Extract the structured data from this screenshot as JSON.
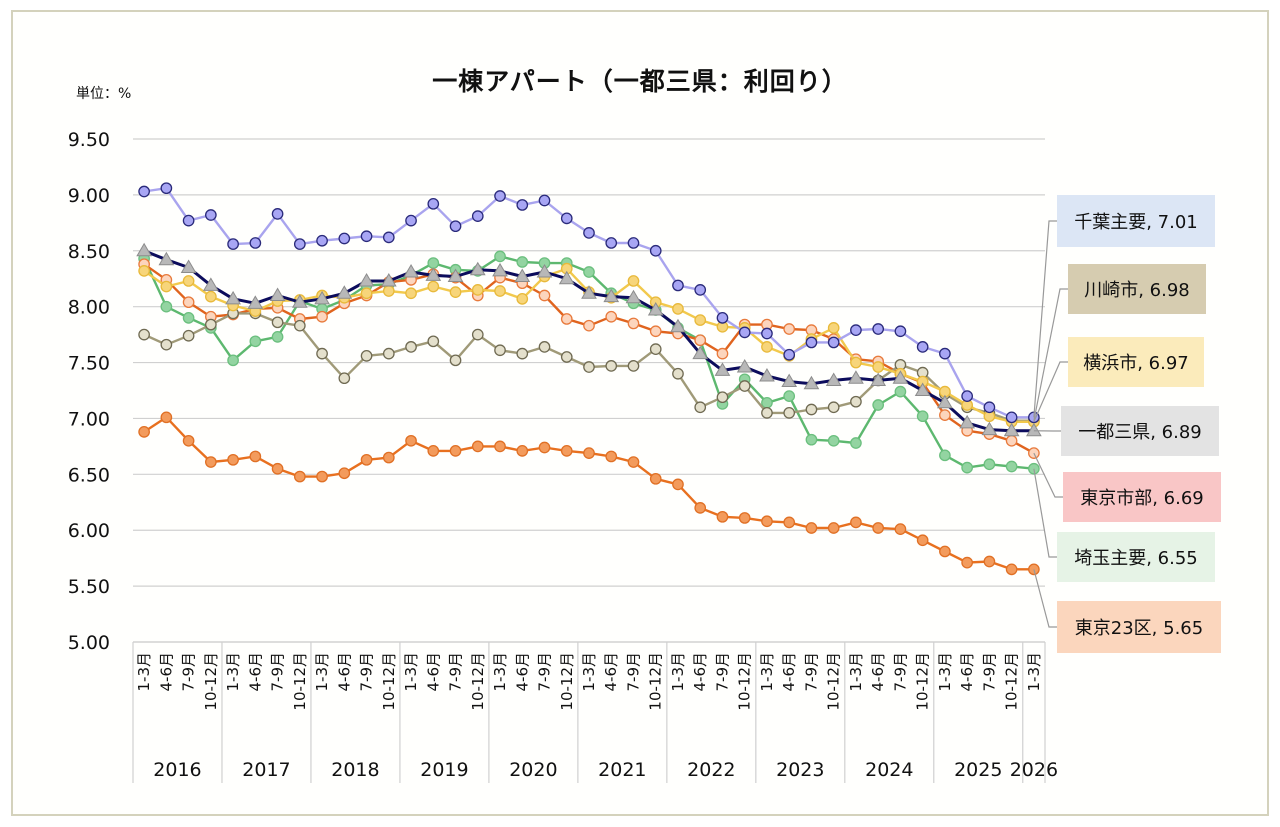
{
  "chart_data": {
    "type": "line",
    "title": "一棟アパート（一都三県：利回り）",
    "unit_label": "単位：%",
    "xlabel": "",
    "ylabel": "",
    "ylim": [
      5.0,
      9.5
    ],
    "yticks": [
      "9.50",
      "9.00",
      "8.50",
      "8.00",
      "7.50",
      "7.00",
      "6.50",
      "6.00",
      "5.50",
      "5.00"
    ],
    "grid": true,
    "legend": "right (data labels at series end)",
    "years": [
      {
        "label": "2016",
        "quarters": 4
      },
      {
        "label": "2017",
        "quarters": 4
      },
      {
        "label": "2018",
        "quarters": 4
      },
      {
        "label": "2019",
        "quarters": 4
      },
      {
        "label": "2020",
        "quarters": 4
      },
      {
        "label": "2021",
        "quarters": 4
      },
      {
        "label": "2022",
        "quarters": 4
      },
      {
        "label": "2023",
        "quarters": 4
      },
      {
        "label": "2024",
        "quarters": 4
      },
      {
        "label": "2025",
        "quarters": 4
      },
      {
        "label": "2026",
        "quarters": 1
      }
    ],
    "categories": [
      "1-3月",
      "4-6月",
      "7-9月",
      "10-12月",
      "1-3月",
      "4-6月",
      "7-9月",
      "10-12月",
      "1-3月",
      "4-6月",
      "7-9月",
      "10-12月",
      "1-3月",
      "4-6月",
      "7-9月",
      "10-12月",
      "1-3月",
      "4-6月",
      "7-9月",
      "10-12月",
      "1-3月",
      "4-6月",
      "7-9月",
      "10-12月",
      "1-3月",
      "4-6月",
      "7-9月",
      "10-12月",
      "1-3月",
      "4-6月",
      "7-9月",
      "10-12月",
      "1-3月",
      "4-6月",
      "7-9月",
      "10-12月",
      "1-3月",
      "4-6月",
      "7-9月",
      "10-12月",
      "1-3月"
    ],
    "series": [
      {
        "name": "千葉主要",
        "end_label": "千葉主要, 7.01",
        "color": "#a9a4ee",
        "marker": "circle",
        "marker_fill": "#a8a6f4",
        "marker_stroke": "#2a2a7a",
        "label_bg": "#dce6f5",
        "values": [
          9.03,
          9.06,
          8.77,
          8.82,
          8.56,
          8.57,
          8.83,
          8.56,
          8.59,
          8.61,
          8.63,
          8.62,
          8.77,
          8.92,
          8.72,
          8.81,
          8.99,
          8.91,
          8.95,
          8.79,
          8.66,
          8.57,
          8.57,
          8.5,
          8.19,
          8.15,
          7.9,
          7.77,
          7.76,
          7.57,
          7.68,
          7.68,
          7.79,
          7.8,
          7.78,
          7.64,
          7.58,
          7.2,
          7.1,
          7.01,
          7.01
        ]
      },
      {
        "name": "川崎市",
        "end_label": "川崎市, 6.98",
        "color": "#a09a78",
        "marker": "circle",
        "marker_fill": "#e4e0cc",
        "marker_stroke": "#6f6a52",
        "label_bg": "#d6ccb0",
        "values": [
          7.75,
          7.66,
          7.74,
          7.84,
          7.94,
          7.94,
          7.86,
          7.83,
          7.58,
          7.36,
          7.56,
          7.58,
          7.64,
          7.69,
          7.52,
          7.75,
          7.61,
          7.58,
          7.64,
          7.55,
          7.46,
          7.47,
          7.47,
          7.62,
          7.4,
          7.1,
          7.19,
          7.29,
          7.05,
          7.05,
          7.08,
          7.1,
          7.15,
          7.34,
          7.48,
          7.41,
          7.22,
          7.1,
          7.05,
          6.98,
          6.98
        ]
      },
      {
        "name": "横浜市",
        "end_label": "横浜市, 6.97",
        "color": "#f2c94c",
        "marker": "circle",
        "marker_fill": "#f7d57a",
        "marker_stroke": "#e8b93a",
        "label_bg": "#fbebbb",
        "values": [
          8.32,
          8.18,
          8.23,
          8.09,
          8.01,
          7.96,
          8.05,
          8.06,
          8.1,
          8.08,
          8.12,
          8.14,
          8.12,
          8.18,
          8.13,
          8.15,
          8.14,
          8.07,
          8.27,
          8.34,
          8.13,
          8.08,
          8.23,
          8.04,
          7.98,
          7.88,
          7.82,
          7.81,
          7.64,
          7.56,
          7.71,
          7.81,
          7.5,
          7.46,
          7.4,
          7.33,
          7.24,
          7.12,
          7.02,
          6.97,
          6.97
        ]
      },
      {
        "name": "一都三県",
        "end_label": "一都三県, 6.89",
        "color": "#0c0c5c",
        "marker": "triangle",
        "marker_fill": "#b8b8b8",
        "marker_stroke": "#8c8c8c",
        "label_bg": "#e3e3e3",
        "values": [
          8.5,
          8.42,
          8.35,
          8.19,
          8.07,
          8.03,
          8.1,
          8.04,
          8.07,
          8.12,
          8.23,
          8.23,
          8.31,
          8.28,
          8.27,
          8.33,
          8.32,
          8.27,
          8.31,
          8.25,
          8.12,
          8.09,
          8.08,
          7.97,
          7.82,
          7.58,
          7.43,
          7.46,
          7.38,
          7.33,
          7.31,
          7.34,
          7.36,
          7.34,
          7.36,
          7.25,
          7.14,
          6.96,
          6.9,
          6.89,
          6.89
        ]
      },
      {
        "name": "東京市部",
        "end_label": "東京市部, 6.69",
        "color": "#e0641e",
        "marker": "circle",
        "marker_fill": "#fcd5bd",
        "marker_stroke": "#e87a3c",
        "label_bg": "#f9c6c6",
        "values": [
          8.38,
          8.24,
          8.04,
          7.91,
          7.93,
          7.98,
          7.99,
          7.89,
          7.91,
          8.03,
          8.1,
          8.22,
          8.24,
          8.29,
          8.26,
          8.1,
          8.26,
          8.21,
          8.1,
          7.89,
          7.83,
          7.91,
          7.85,
          7.78,
          7.76,
          7.7,
          7.58,
          7.84,
          7.84,
          7.8,
          7.79,
          7.71,
          7.53,
          7.51,
          7.4,
          7.32,
          7.03,
          6.89,
          6.86,
          6.8,
          6.69
        ]
      },
      {
        "name": "埼玉主要",
        "end_label": "埼玉主要, 6.55",
        "color": "#5db86f",
        "marker": "circle",
        "marker_fill": "#93d4a1",
        "marker_stroke": "#6bbf7e",
        "label_bg": "#e6f3e6",
        "values": [
          8.43,
          8.0,
          7.9,
          7.81,
          7.52,
          7.69,
          7.73,
          8.05,
          7.98,
          8.06,
          8.19,
          8.2,
          8.28,
          8.39,
          8.33,
          8.32,
          8.45,
          8.4,
          8.39,
          8.39,
          8.31,
          8.12,
          8.03,
          7.97,
          7.81,
          7.7,
          7.13,
          7.35,
          7.14,
          7.2,
          6.81,
          6.8,
          6.78,
          7.12,
          7.24,
          7.02,
          6.67,
          6.56,
          6.59,
          6.57,
          6.55
        ]
      },
      {
        "name": "東京23区",
        "end_label": "東京23区, 5.65",
        "color": "#e8701f",
        "marker": "circle",
        "marker_fill": "#f39b5c",
        "marker_stroke": "#e07025",
        "label_bg": "#fbd6bd",
        "values": [
          6.88,
          7.01,
          6.8,
          6.61,
          6.63,
          6.66,
          6.55,
          6.48,
          6.48,
          6.51,
          6.63,
          6.65,
          6.8,
          6.71,
          6.71,
          6.75,
          6.75,
          6.71,
          6.74,
          6.71,
          6.69,
          6.66,
          6.61,
          6.46,
          6.41,
          6.2,
          6.12,
          6.11,
          6.08,
          6.07,
          6.02,
          6.02,
          6.07,
          6.02,
          6.01,
          5.91,
          5.81,
          5.71,
          5.72,
          5.65,
          5.65
        ]
      }
    ]
  }
}
